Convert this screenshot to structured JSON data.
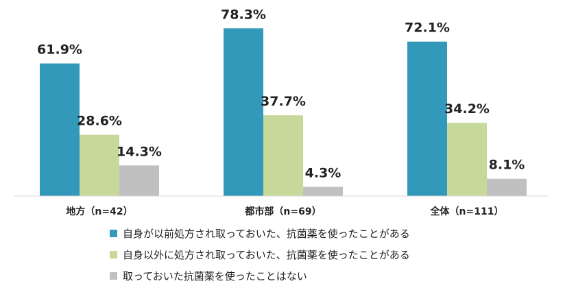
{
  "chart_data": {
    "type": "bar",
    "title": "",
    "xlabel": "",
    "ylabel": "",
    "ylim": [
      0,
      80
    ],
    "grid": false,
    "legend_position": "bottom",
    "categories": [
      "地方（n=42）",
      "都市部（n=69）",
      "全体（n=111）"
    ],
    "series": [
      {
        "name": "自身が以前処方され取っておいた、抗菌薬を使ったことがある",
        "color": "#3399bb",
        "values": [
          61.9,
          78.3,
          72.1
        ],
        "labels": [
          "61.9%",
          "78.3%",
          "72.1%"
        ]
      },
      {
        "name": "自身以外に処方され取っておいた、抗菌薬を使ったことがある",
        "color": "#c6d99b",
        "values": [
          28.6,
          37.7,
          34.2
        ],
        "labels": [
          "28.6%",
          "37.7%",
          "34.2%"
        ]
      },
      {
        "name": "取っておいた抗菌薬を使ったことはない",
        "color": "#c0c0c0",
        "values": [
          14.3,
          4.3,
          8.1
        ],
        "labels": [
          "14.3%",
          "4.3%",
          "8.1%"
        ]
      }
    ]
  }
}
